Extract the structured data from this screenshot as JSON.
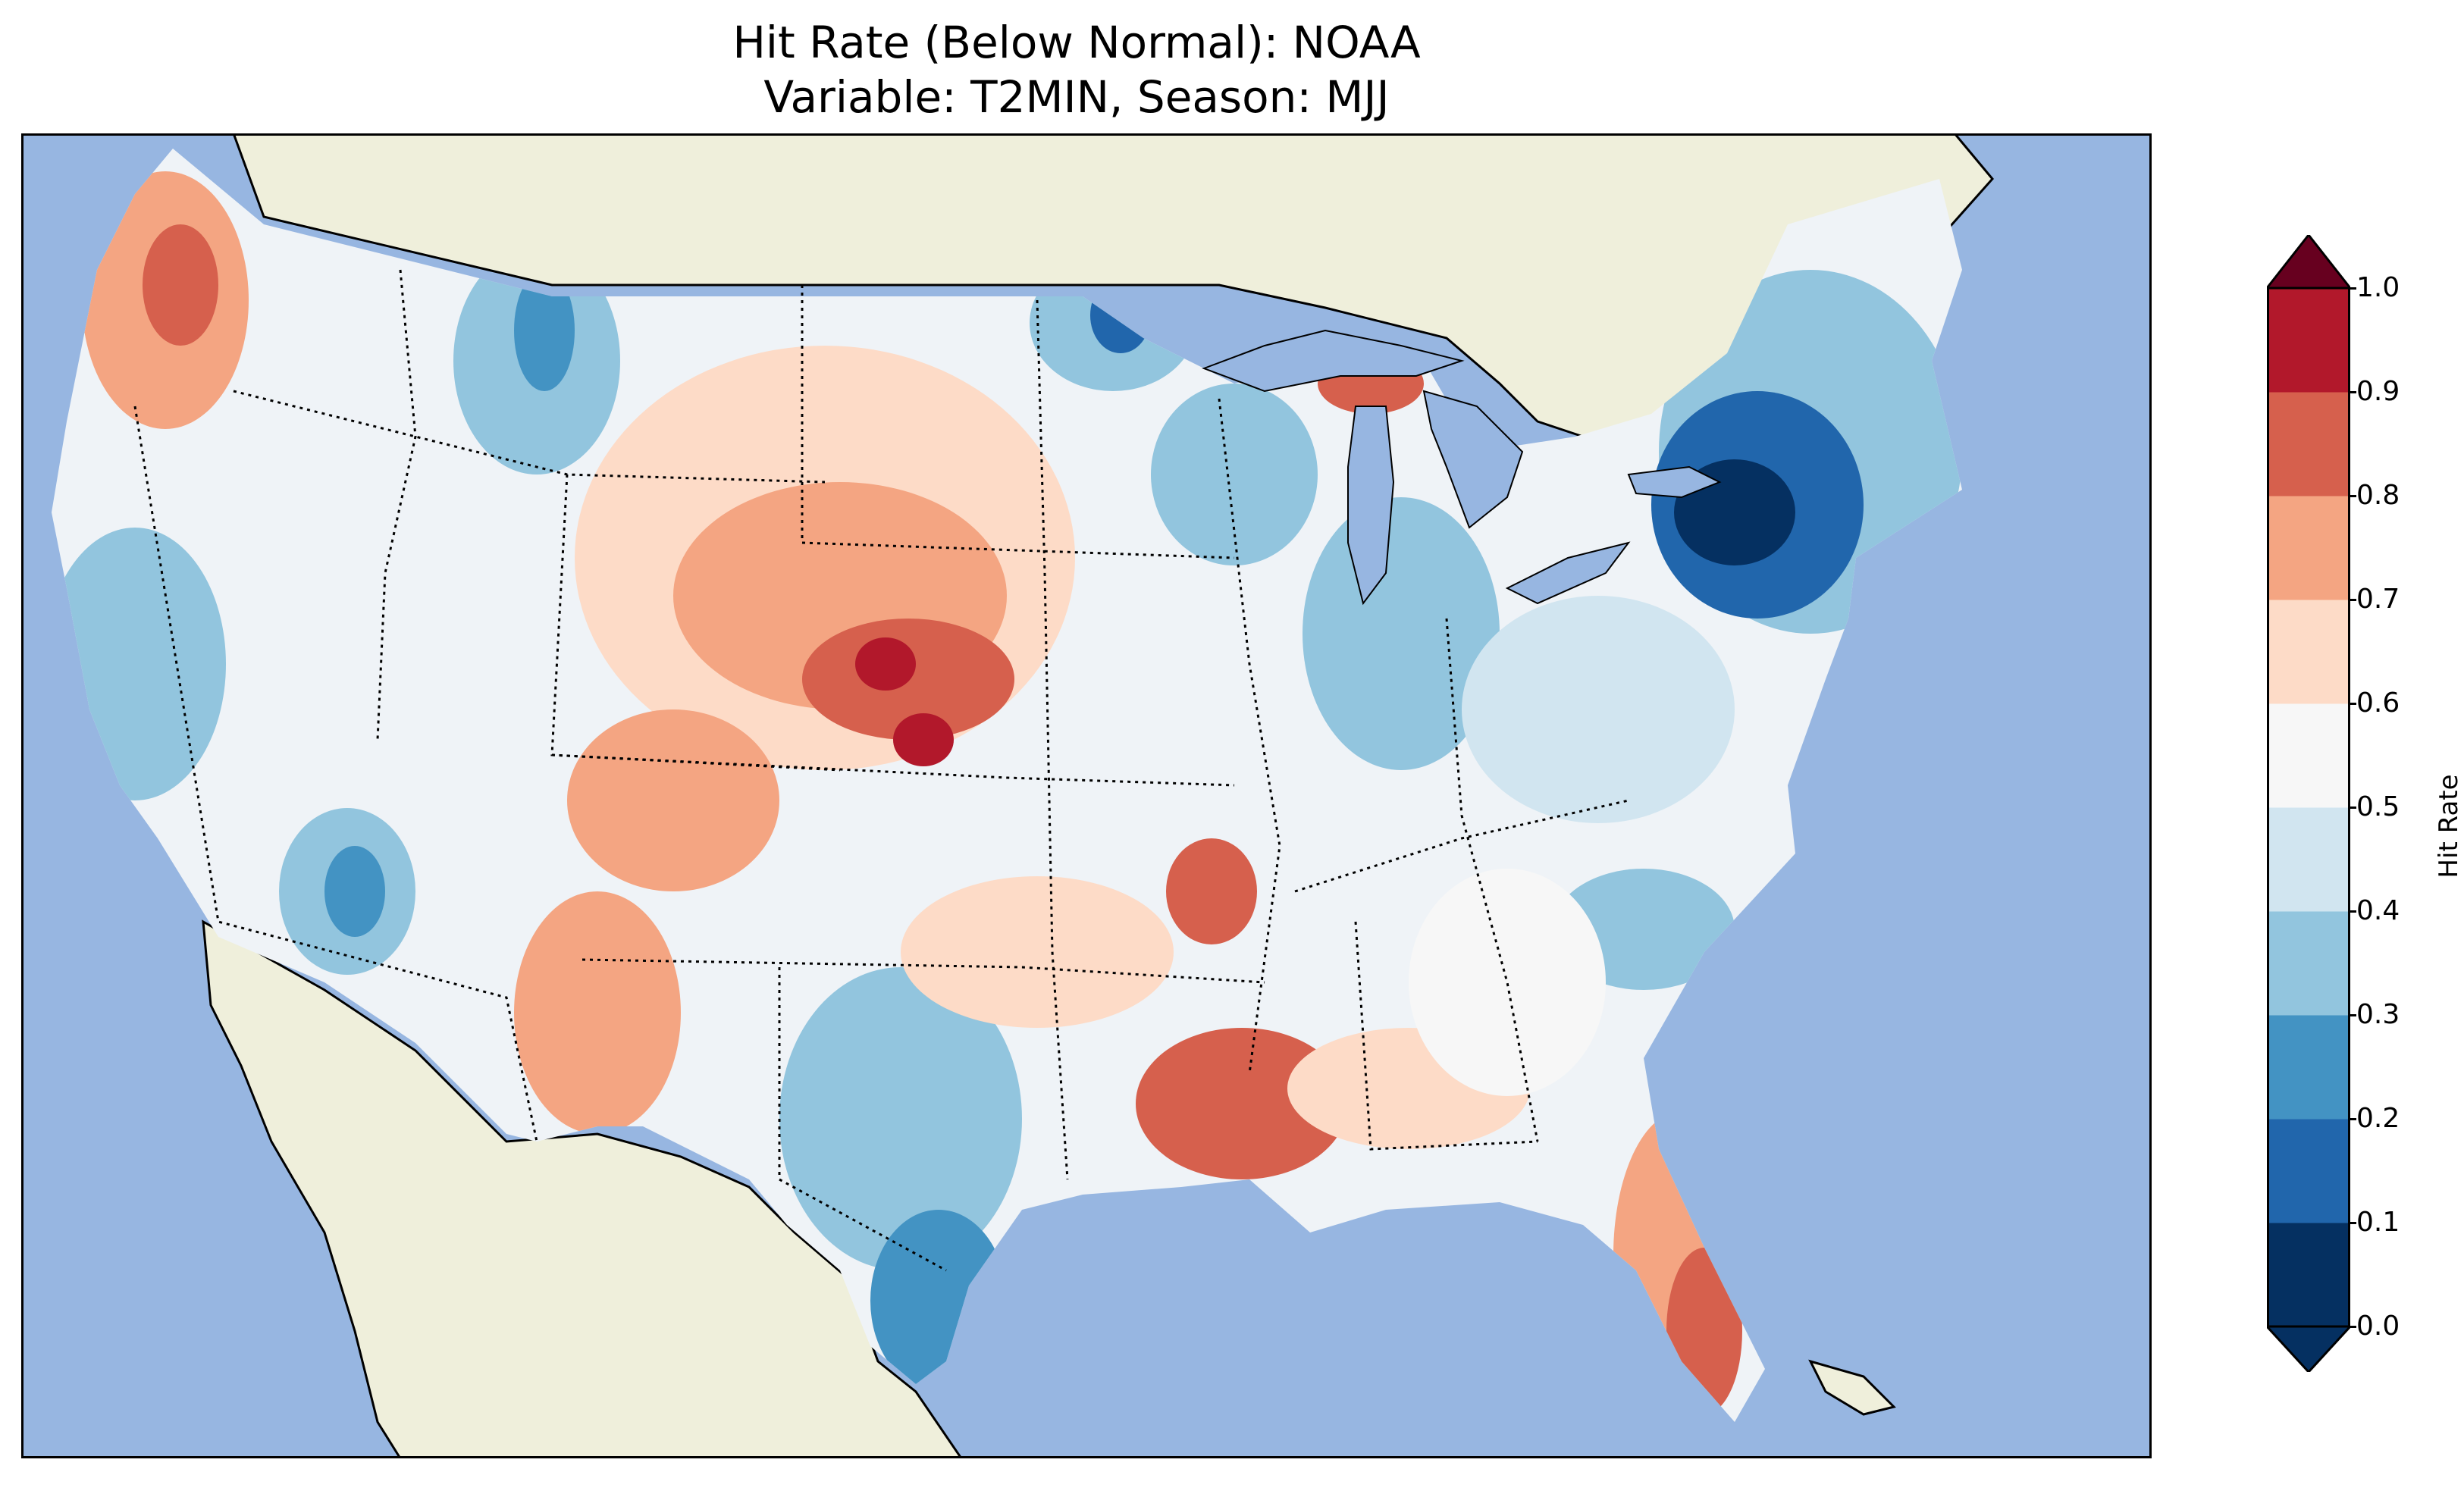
{
  "title": {
    "line1": "Hit Rate (Below Normal): NOAA",
    "line2": "Variable: T2MIN, Season: MJJ"
  },
  "map": {
    "region": "contiguous-united-states",
    "colors": {
      "ocean": "#97b6e1",
      "land": "#efefdb",
      "border": "#000000"
    },
    "highlight_areas": [
      {
        "name": "upstate-new-york",
        "level": "0.0-0.1"
      },
      {
        "name": "nebraska-panhandle",
        "level": "0.8-0.9"
      },
      {
        "name": "northern-rockies-plains",
        "level": "0.6-0.8"
      },
      {
        "name": "lower-mississippi",
        "level": "0.7-0.8"
      },
      {
        "name": "south-texas",
        "level": "0.2-0.3"
      },
      {
        "name": "south-florida",
        "level": "0.7-0.8"
      },
      {
        "name": "pacific-northwest-coast",
        "level": "0.7-0.8"
      }
    ]
  },
  "colorbar": {
    "label": "Hit Rate",
    "ticks": [
      "0.0",
      "0.1",
      "0.2",
      "0.3",
      "0.4",
      "0.5",
      "0.6",
      "0.7",
      "0.8",
      "0.9",
      "1.0"
    ],
    "colors": [
      "#053061",
      "#2166ac",
      "#4393c3",
      "#92c5de",
      "#d1e5f0",
      "#f7f7f7",
      "#fddbc7",
      "#f4a582",
      "#d6604d",
      "#b2182b",
      "#67001f"
    ],
    "extend": "both"
  }
}
